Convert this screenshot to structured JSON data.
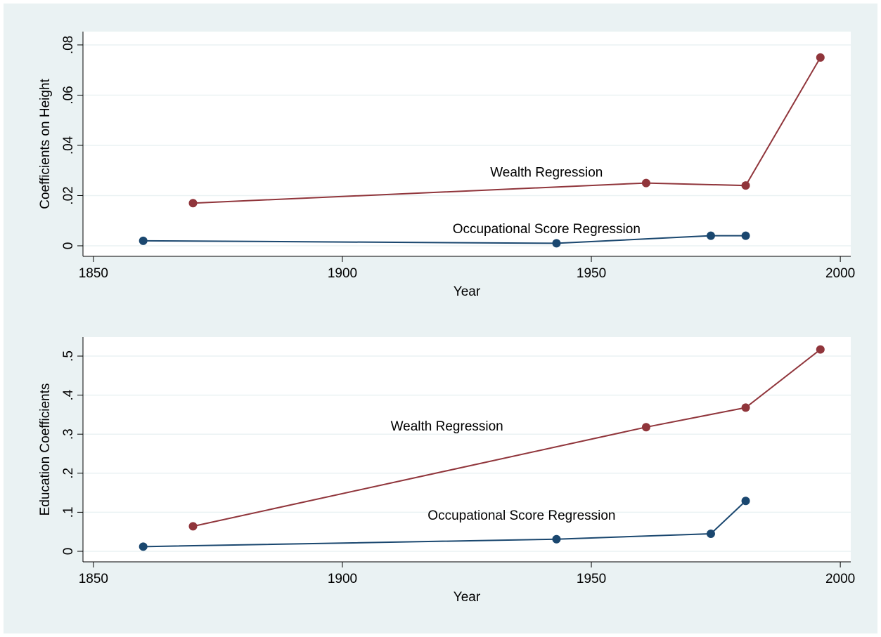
{
  "chart_data": [
    {
      "type": "line",
      "ylabel": "Coefficients on Height",
      "xlabel": "Year",
      "xlim": [
        1847.9,
        2002.1
      ],
      "xticks": [
        1850,
        1900,
        1950,
        2000
      ],
      "ylim": [
        -0.0042,
        0.0853
      ],
      "yticks": [
        0,
        {
          "value": 0.02,
          "label": ".02"
        },
        {
          "value": 0.04,
          "label": ".04"
        },
        {
          "value": 0.06,
          "label": ".06"
        },
        {
          "value": 0.08,
          "label": ".08"
        }
      ],
      "grid": true,
      "series": [
        {
          "color": "#90353b",
          "x": [
            1870,
            1961,
            1981,
            1996
          ],
          "values": [
            0.017,
            0.025,
            0.024,
            0.075
          ]
        },
        {
          "color": "#1a476f",
          "x": [
            1860,
            1943,
            1974,
            1981
          ],
          "values": [
            0.002,
            0.001,
            0.004,
            0.004
          ]
        }
      ],
      "annotations": [
        {
          "text": "Wealth Regression",
          "x": 1941,
          "y": 0.029
        },
        {
          "text": "Occupational Score Regression",
          "x": 1941,
          "y": 0.0065
        }
      ]
    },
    {
      "type": "line",
      "ylabel": "Education Coefficients",
      "xlabel": "Year",
      "xlim": [
        1847.9,
        2002.1
      ],
      "xticks": [
        1850,
        1900,
        1950,
        2000
      ],
      "ylim": [
        -0.027,
        0.5486
      ],
      "yticks": [
        0,
        {
          "value": 0.1,
          "label": ".1"
        },
        {
          "value": 0.2,
          "label": ".2"
        },
        {
          "value": 0.3,
          "label": ".3"
        },
        {
          "value": 0.4,
          "label": ".4"
        },
        {
          "value": 0.5,
          "label": ".5"
        }
      ],
      "grid": true,
      "series": [
        {
          "color": "#90353b",
          "x": [
            1870,
            1961,
            1981,
            1996
          ],
          "values": [
            0.064,
            0.318,
            0.368,
            0.517
          ]
        },
        {
          "color": "#1a476f",
          "x": [
            1860,
            1943,
            1974,
            1981
          ],
          "values": [
            0.012,
            0.031,
            0.045,
            0.129
          ]
        }
      ],
      "annotations": [
        {
          "text": "Wealth Regression",
          "x": 1921,
          "y": 0.318
        },
        {
          "text": "Occupational Score Regression",
          "x": 1936,
          "y": 0.09
        }
      ]
    }
  ]
}
